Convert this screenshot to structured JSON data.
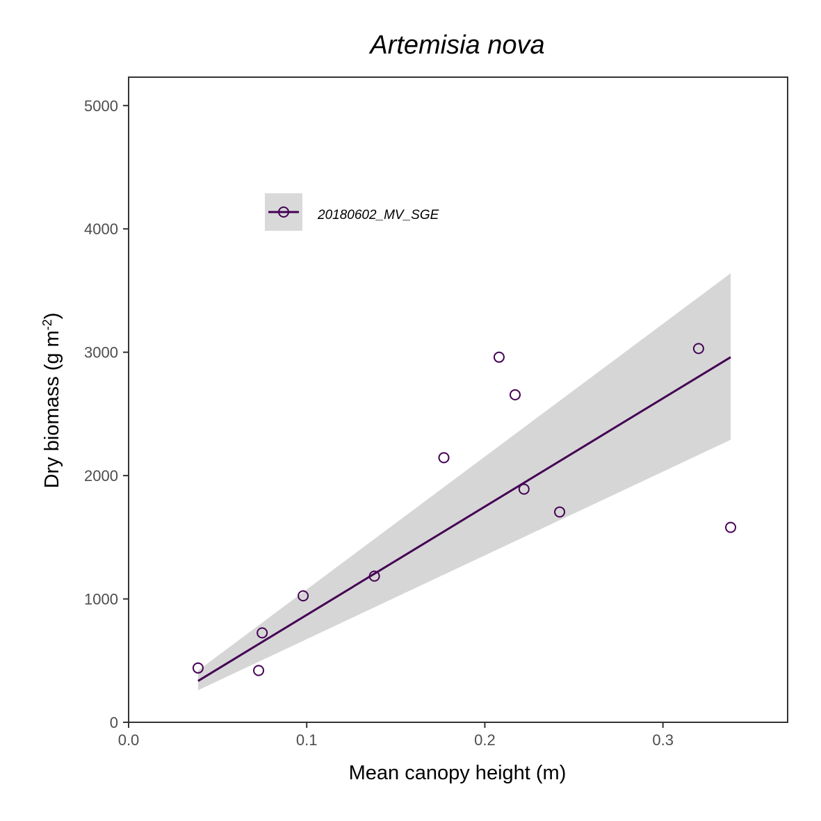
{
  "colors": {
    "series": "#440154",
    "ribbon": "#d6d6d6",
    "axis": "#333333",
    "tick_text": "#4d4d4d",
    "legend_key_bg": "#d9d9d9"
  },
  "chart_data": {
    "type": "scatter",
    "title": "Artemisia nova",
    "xlabel": "Mean canopy height (m)",
    "ylabel": "Dry biomass (g m-2)",
    "ylabel_parts": {
      "main": "Dry biomass (g m",
      "sup": "-2",
      "close": ")"
    },
    "xlim": [
      0,
      0.37
    ],
    "ylim": [
      0,
      5230
    ],
    "x_ticks": [
      0.0,
      0.1,
      0.2,
      0.3
    ],
    "x_tick_labels": [
      "0.0",
      "0.1",
      "0.2",
      "0.3"
    ],
    "y_ticks": [
      0,
      1000,
      2000,
      3000,
      4000,
      5000
    ],
    "y_tick_labels": [
      "0",
      "1000",
      "2000",
      "3000",
      "4000",
      "5000"
    ],
    "grid": false,
    "legend": {
      "position": "top-left",
      "entries": [
        "20180602_MV_SGE"
      ]
    },
    "series": [
      {
        "name": "20180602_MV_SGE",
        "points": [
          {
            "x": 0.039,
            "y": 440
          },
          {
            "x": 0.073,
            "y": 420
          },
          {
            "x": 0.075,
            "y": 725
          },
          {
            "x": 0.098,
            "y": 1025
          },
          {
            "x": 0.138,
            "y": 1185
          },
          {
            "x": 0.177,
            "y": 2145
          },
          {
            "x": 0.208,
            "y": 2960
          },
          {
            "x": 0.217,
            "y": 2655
          },
          {
            "x": 0.222,
            "y": 1890
          },
          {
            "x": 0.242,
            "y": 1705
          },
          {
            "x": 0.32,
            "y": 3030
          },
          {
            "x": 0.338,
            "y": 1580
          }
        ],
        "fit": {
          "x": [
            0.039,
            0.338
          ],
          "y": [
            335,
            2960
          ]
        },
        "ribbon": {
          "x": [
            0.039,
            0.338
          ],
          "lower": [
            260,
            2290
          ],
          "upper": [
            420,
            3640
          ]
        }
      }
    ]
  }
}
